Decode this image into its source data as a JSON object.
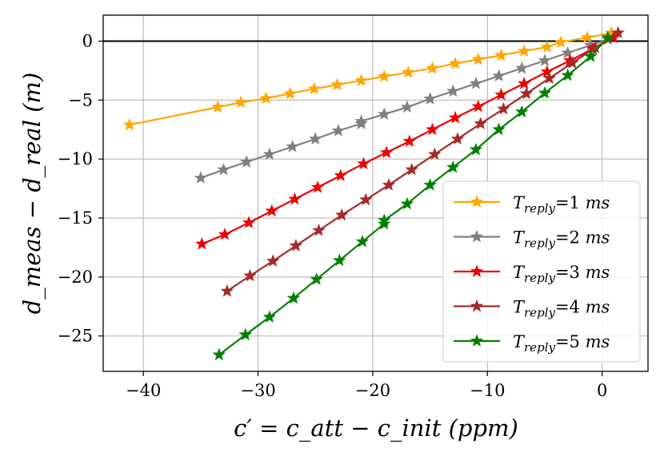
{
  "chart_data": {
    "type": "line",
    "title": "",
    "xlabel": "c′ = c_att − c_init (ppm)",
    "ylabel": "d_meas − d_real (m)",
    "xlim": [
      -43.5,
      4
    ],
    "ylim": [
      -28,
      2.2
    ],
    "xticks": [
      -40,
      -30,
      -20,
      -10,
      0
    ],
    "yticks": [
      0,
      -5,
      -10,
      -15,
      -20,
      -25
    ],
    "xtick_labels": [
      "−40",
      "−30",
      "−20",
      "−10",
      "0"
    ],
    "ytick_labels": [
      "0",
      "−5",
      "−10",
      "−15",
      "−20",
      "−25"
    ],
    "grid": true,
    "hline": 0,
    "legend_location": "lower-right",
    "series": [
      {
        "name": "T_reply=1 ms",
        "legend_var": "T",
        "legend_sub": "reply",
        "legend_value": "=1",
        "legend_unit": "ms",
        "color": "#FFA500",
        "x": [
          -41.2,
          -33.5,
          -31.5,
          -29.3,
          -27.2,
          -25.1,
          -23.1,
          -21.0,
          -19.0,
          -16.9,
          -14.8,
          -12.8,
          -10.8,
          -8.8,
          -6.8,
          -4.8,
          -3.6,
          -1.3,
          0.8
        ],
        "y": [
          -7.1,
          -5.6,
          -5.2,
          -4.85,
          -4.45,
          -4.05,
          -3.7,
          -3.35,
          -3.0,
          -2.65,
          -2.3,
          -1.9,
          -1.55,
          -1.2,
          -0.85,
          -0.5,
          -0.1,
          0.3,
          0.7
        ]
      },
      {
        "name": "T_reply=2 ms",
        "legend_var": "T",
        "legend_sub": "reply",
        "legend_value": "=2",
        "legend_unit": "ms",
        "color": "#808080",
        "x": [
          -35.0,
          -33.0,
          -31.0,
          -29.0,
          -27.0,
          -25.0,
          -23.0,
          -21.0,
          -21.0,
          -19.0,
          -17.0,
          -15.0,
          -13.0,
          -11.0,
          -9.0,
          -7.0,
          -5.0,
          -3.0,
          -1.0,
          0.5
        ],
        "y": [
          -11.6,
          -10.9,
          -10.25,
          -9.6,
          -8.95,
          -8.3,
          -7.6,
          -7.0,
          -6.8,
          -6.2,
          -5.6,
          -4.9,
          -4.25,
          -3.6,
          -2.95,
          -2.3,
          -1.65,
          -1.0,
          -0.35,
          0.15
        ]
      },
      {
        "name": "T_reply=3 ms",
        "legend_var": "T",
        "legend_sub": "reply",
        "legend_value": "=3",
        "legend_unit": "ms",
        "color": "#EE0000",
        "x": [
          -34.9,
          -32.9,
          -30.8,
          -28.8,
          -26.8,
          -24.8,
          -22.8,
          -20.8,
          -18.8,
          -16.8,
          -14.8,
          -12.8,
          -10.8,
          -8.8,
          -6.8,
          -4.8,
          -2.8,
          -0.8,
          1.0
        ],
        "y": [
          -17.2,
          -16.4,
          -15.4,
          -14.4,
          -13.4,
          -12.4,
          -11.4,
          -10.4,
          -9.45,
          -8.5,
          -7.5,
          -6.5,
          -5.55,
          -4.55,
          -3.6,
          -2.6,
          -1.65,
          -0.65,
          0.3
        ]
      },
      {
        "name": "T_reply=4 ms",
        "legend_var": "T",
        "legend_sub": "reply",
        "legend_value": "=4",
        "legend_unit": "ms",
        "color": "#A52A2A",
        "x": [
          -32.7,
          -30.7,
          -28.7,
          -26.7,
          -24.7,
          -22.7,
          -20.6,
          -18.6,
          -16.6,
          -14.6,
          -12.6,
          -10.6,
          -8.6,
          -6.6,
          -4.6,
          -2.6,
          -0.6,
          1.4
        ],
        "y": [
          -21.2,
          -19.9,
          -18.65,
          -17.35,
          -16.05,
          -14.75,
          -13.45,
          -12.2,
          -10.9,
          -9.6,
          -8.3,
          -7.0,
          -5.75,
          -4.45,
          -3.15,
          -1.85,
          -0.55,
          0.7
        ]
      },
      {
        "name": "T_reply=5 ms",
        "legend_var": "T",
        "legend_sub": "reply",
        "legend_value": "=5",
        "legend_unit": "ms",
        "color": "#008000",
        "x": [
          -33.4,
          -31.1,
          -29.0,
          -26.9,
          -24.9,
          -22.9,
          -20.9,
          -19.0,
          -19.0,
          -17.0,
          -15.0,
          -13.0,
          -11.0,
          -9.0,
          -7.0,
          -5.0,
          -3.0,
          -1.0,
          0.5
        ],
        "y": [
          -26.6,
          -24.9,
          -23.4,
          -21.8,
          -20.2,
          -18.6,
          -17.0,
          -15.5,
          -15.2,
          -13.8,
          -12.2,
          -10.7,
          -9.2,
          -7.5,
          -6.0,
          -4.4,
          -2.9,
          -1.3,
          0.3
        ]
      }
    ]
  }
}
